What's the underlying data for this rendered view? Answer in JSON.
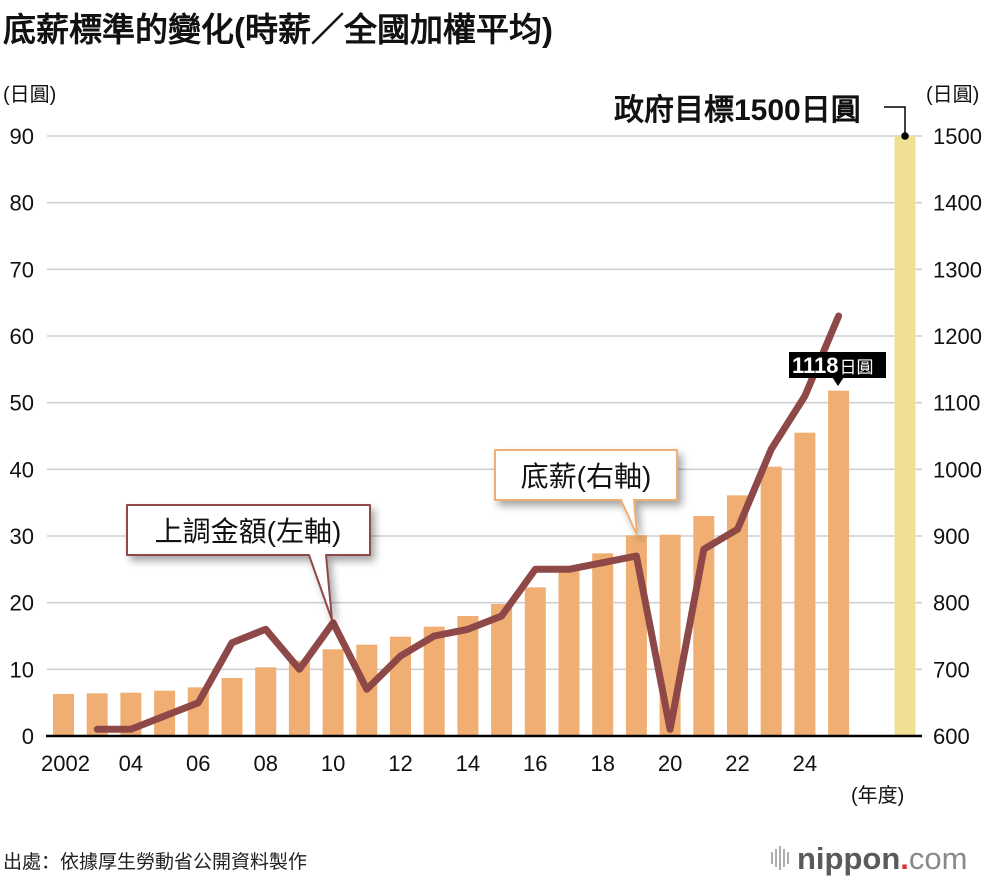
{
  "chart_data": {
    "type": "bar",
    "combo": "bar+line (dual axis)",
    "title": "底薪標準的變化(時薪／全國加權平均)",
    "xlabel": "(年度)",
    "ylabel_left": "(日圓)",
    "ylabel_right": "(日圓)",
    "categories": [
      "2002",
      "2003",
      "2004",
      "2005",
      "2006",
      "2007",
      "2008",
      "2009",
      "2010",
      "2011",
      "2012",
      "2013",
      "2014",
      "2015",
      "2016",
      "2017",
      "2018",
      "2019",
      "2020",
      "2021",
      "2022",
      "2023",
      "2024",
      "2025"
    ],
    "x_tick_labels": [
      "2002",
      "04",
      "06",
      "08",
      "10",
      "12",
      "14",
      "16",
      "18",
      "20",
      "22",
      "24"
    ],
    "left_axis": {
      "range": [
        0,
        90
      ],
      "ticks": [
        0,
        10,
        20,
        30,
        40,
        50,
        60,
        70,
        80,
        90
      ]
    },
    "right_axis": {
      "range": [
        600,
        1500
      ],
      "ticks": [
        600,
        700,
        800,
        900,
        1000,
        1100,
        1200,
        1300,
        1400,
        1500
      ]
    },
    "grid": true,
    "series": [
      {
        "name": "底薪(右軸)",
        "type": "bar",
        "axis": "right",
        "color": "#F0AE72",
        "values": [
          663,
          664,
          665,
          668,
          673,
          687,
          703,
          713,
          730,
          737,
          749,
          764,
          780,
          798,
          823,
          848,
          874,
          901,
          902,
          930,
          961,
          1004,
          1055,
          1118
        ]
      },
      {
        "name": "上調金額(左軸)",
        "type": "line",
        "axis": "left",
        "color": "#8E4848",
        "values": [
          null,
          1,
          1,
          3,
          5,
          14,
          16,
          10,
          17,
          7,
          12,
          15,
          16,
          18,
          25,
          25,
          26,
          27,
          1,
          28,
          31,
          43,
          51,
          63
        ]
      }
    ],
    "target": {
      "label": "政府目標1500日圓",
      "value": 1500,
      "axis": "right",
      "color": "#F0E094"
    },
    "annotations": {
      "latest_value": {
        "number": "1118",
        "unit": "日圓",
        "category": "2025"
      },
      "line_callout": {
        "text": "上調金額(左軸)",
        "category": "2010"
      },
      "bar_callout": {
        "text": "底薪(右軸)",
        "category": "2019"
      }
    }
  },
  "footer": {
    "source": "出處：依據厚生勞動省公開資料製作",
    "logo_main": "nippon",
    "logo_dot": ".",
    "logo_tld": "com"
  }
}
